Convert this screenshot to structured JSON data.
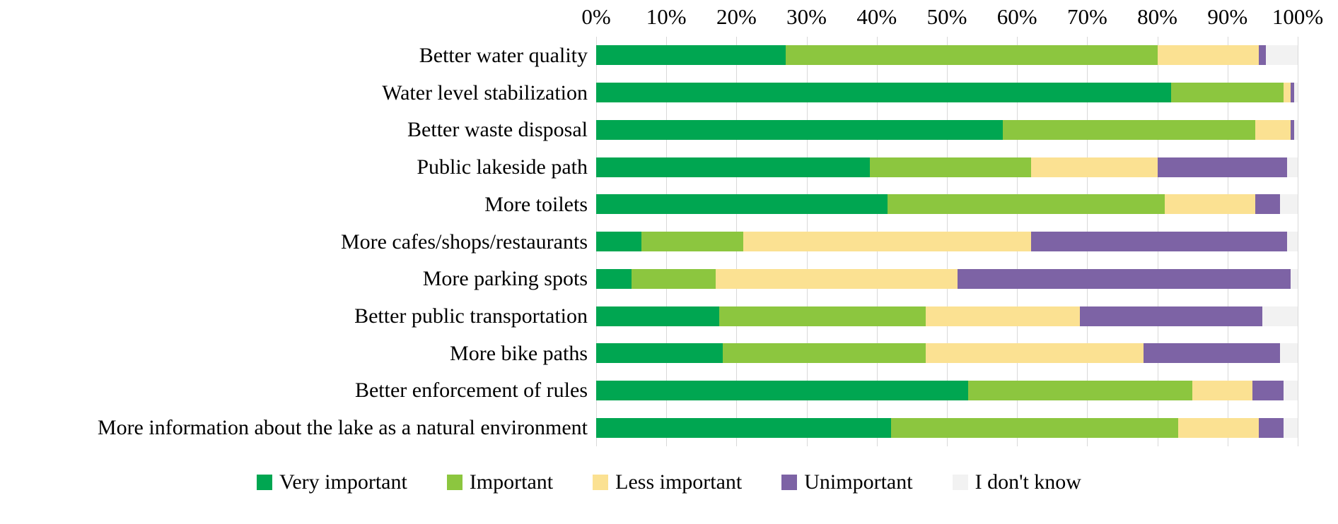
{
  "chart_data": {
    "type": "bar",
    "orientation": "horizontal",
    "stacked": true,
    "unit": "percent",
    "grid": true,
    "gridline_color": "#d9d9d9",
    "background_color": "#ffffff",
    "x_axis": {
      "position": "top",
      "min": 0,
      "max": 100,
      "tick_step": 10,
      "ticks": [
        "0%",
        "10%",
        "20%",
        "30%",
        "40%",
        "50%",
        "60%",
        "70%",
        "80%",
        "90%",
        "100%"
      ]
    },
    "categories": [
      "Better water quality",
      "Water level stabilization",
      "Better waste disposal",
      "Public lakeside path",
      "More toilets",
      "More cafes/shops/restaurants",
      "More parking spots",
      "Better public transportation",
      "More bike paths",
      "Better enforcement of rules",
      "More information about the lake as a natural environment"
    ],
    "series": [
      {
        "name": "Very important",
        "color": "#00a651",
        "values": [
          27,
          82,
          58,
          39,
          41.5,
          6.5,
          5,
          17.5,
          18,
          53,
          42
        ]
      },
      {
        "name": "Important",
        "color": "#8cc63f",
        "values": [
          53,
          16,
          36,
          23,
          39.5,
          14.5,
          12,
          29.5,
          29,
          32,
          41
        ]
      },
      {
        "name": "Less important",
        "color": "#fbe192",
        "values": [
          14.5,
          1,
          5,
          18,
          13,
          41,
          34.5,
          22,
          31,
          8.5,
          11.5
        ]
      },
      {
        "name": "Unimportant",
        "color": "#7d63a5",
        "values": [
          1,
          0.5,
          0.5,
          18.5,
          3.5,
          36.5,
          47.5,
          26,
          19.5,
          4.5,
          3.5
        ]
      },
      {
        "name": "I don't know",
        "color": "#f2f2f2",
        "values": [
          4.5,
          0.5,
          0.5,
          1.5,
          2.5,
          1.5,
          1,
          5,
          2.5,
          2,
          2
        ]
      }
    ],
    "legend": {
      "position": "bottom",
      "labels": [
        "Very important",
        "Important",
        "Less important",
        "Unimportant",
        "I don't know"
      ]
    }
  }
}
